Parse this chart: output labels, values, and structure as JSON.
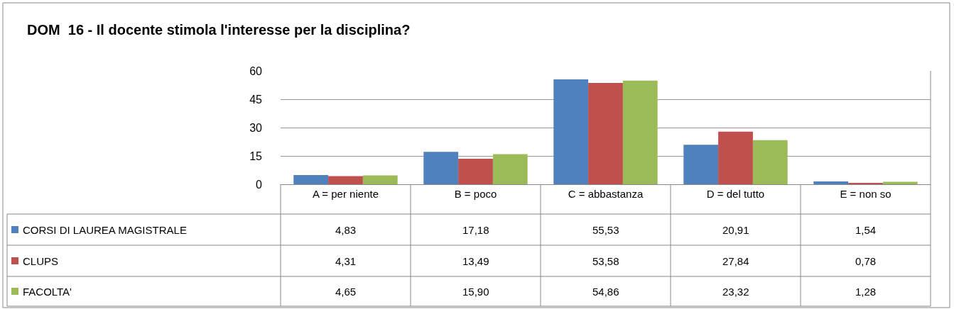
{
  "chart_data": {
    "type": "bar",
    "title": "DOM  16 - Il docente stimola l'interesse per la disciplina?",
    "categories": [
      "A = per niente",
      "B = poco",
      "C = abbastanza",
      "D = del tutto",
      "E = non so"
    ],
    "series": [
      {
        "name": "CORSI DI LAUREA MAGISTRALE",
        "color": "#4f81bd",
        "values": [
          4.83,
          17.18,
          55.53,
          20.91,
          1.54
        ],
        "value_labels": [
          "4,83",
          "17,18",
          "55,53",
          "20,91",
          "1,54"
        ]
      },
      {
        "name": "CLUPS",
        "color": "#c0504d",
        "values": [
          4.31,
          13.49,
          53.58,
          27.84,
          0.78
        ],
        "value_labels": [
          "4,31",
          "13,49",
          "53,58",
          "27,84",
          "0,78"
        ]
      },
      {
        "name": "FACOLTA'",
        "color": "#9bbb59",
        "values": [
          4.65,
          15.9,
          54.86,
          23.32,
          1.28
        ],
        "value_labels": [
          "4,65",
          "15,90",
          "54,86",
          "23,32",
          "1,28"
        ]
      }
    ],
    "legend": "bottom left",
    "ylim": [
      0,
      60
    ],
    "yticks": [
      0,
      15,
      30,
      45,
      60
    ],
    "grid": "y"
  }
}
